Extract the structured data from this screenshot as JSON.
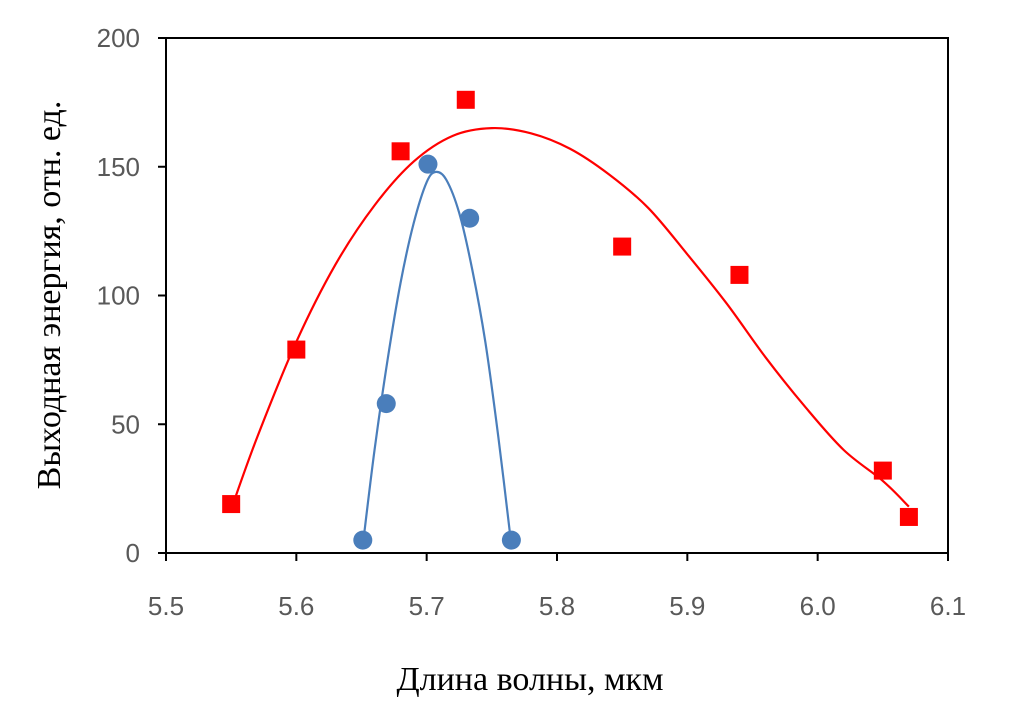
{
  "chart_data": {
    "type": "scatter",
    "xlabel": "Длина волны, мкм",
    "ylabel": "Выходная энергия, отн. ед.",
    "xlim": [
      5.5,
      6.1
    ],
    "ylim": [
      0,
      200
    ],
    "x_ticks": [
      "5.5",
      "5.6",
      "5.7",
      "5.8",
      "5.9",
      "6.0",
      "6.1"
    ],
    "y_ticks": [
      "0",
      "50",
      "100",
      "150",
      "200"
    ],
    "grid": false,
    "legend": false,
    "series": [
      {
        "marker": "square",
        "color": "#ff0000",
        "points": [
          [
            5.55,
            19
          ],
          [
            5.6,
            79
          ],
          [
            5.68,
            156
          ],
          [
            5.73,
            176
          ],
          [
            5.85,
            119
          ],
          [
            5.94,
            108
          ],
          [
            6.05,
            32
          ],
          [
            6.07,
            14
          ]
        ],
        "fit_curve": [
          [
            5.55,
            17
          ],
          [
            5.57,
            45
          ],
          [
            5.6,
            82
          ],
          [
            5.63,
            112
          ],
          [
            5.66,
            135
          ],
          [
            5.69,
            152
          ],
          [
            5.72,
            162
          ],
          [
            5.75,
            165
          ],
          [
            5.78,
            163
          ],
          [
            5.81,
            157
          ],
          [
            5.84,
            147
          ],
          [
            5.87,
            134
          ],
          [
            5.9,
            116
          ],
          [
            5.93,
            97
          ],
          [
            5.96,
            76
          ],
          [
            5.99,
            57
          ],
          [
            6.02,
            40
          ],
          [
            6.05,
            28
          ],
          [
            6.07,
            18
          ]
        ]
      },
      {
        "marker": "circle",
        "color": "#4a7ebb",
        "points": [
          [
            5.651,
            5
          ],
          [
            5.669,
            58
          ],
          [
            5.701,
            151
          ],
          [
            5.733,
            130
          ],
          [
            5.765,
            5
          ]
        ],
        "fit_curve": [
          [
            5.651,
            3
          ],
          [
            5.66,
            40
          ],
          [
            5.67,
            75
          ],
          [
            5.68,
            105
          ],
          [
            5.69,
            128
          ],
          [
            5.7,
            144
          ],
          [
            5.707,
            148
          ],
          [
            5.715,
            145
          ],
          [
            5.725,
            132
          ],
          [
            5.735,
            110
          ],
          [
            5.745,
            82
          ],
          [
            5.755,
            45
          ],
          [
            5.765,
            3
          ]
        ]
      }
    ]
  }
}
